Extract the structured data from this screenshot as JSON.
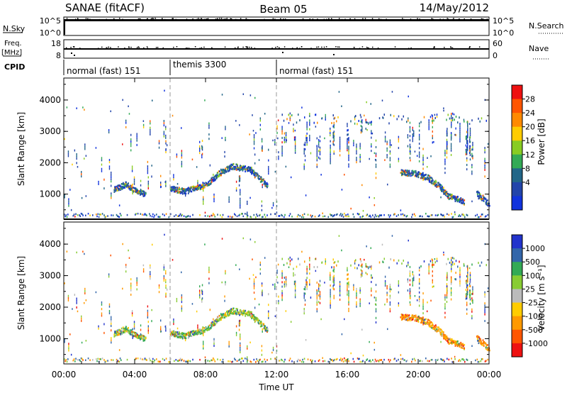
{
  "header": {
    "station": "SANAE (fitACF)",
    "beam": "Beam 05",
    "date": "14/May/2012"
  },
  "panels": {
    "nsky": {
      "label": "N.Sky",
      "ticks": [
        "10^5",
        "10^0"
      ]
    },
    "nsearch": {
      "label": "N.Search",
      "ticks": [
        "10^5",
        "10^0"
      ]
    },
    "freq": {
      "label_top": "Freq.",
      "label_bottom": "[MHz]",
      "ticks": [
        "18",
        "8"
      ]
    },
    "nave": {
      "label": "Nave",
      "ticks": [
        "60",
        "0"
      ]
    },
    "cpid": {
      "label": "CPID",
      "segments": [
        {
          "text": "normal (fast) 151",
          "start_hour": 0
        },
        {
          "text": "themis 3300",
          "start_hour": 6
        },
        {
          "text": "normal (fast) 151",
          "start_hour": 12
        }
      ]
    }
  },
  "colorbar_power": {
    "label": "Power [dB]",
    "ticks": [
      "28",
      "24",
      "20",
      "16",
      "12",
      "8",
      "4"
    ],
    "colors": [
      "#ee1111",
      "#ff5500",
      "#ff8a00",
      "#ffcc00",
      "#88cc22",
      "#33aa55",
      "#226688",
      "#2244aa",
      "#1133dd"
    ]
  },
  "colorbar_velocity": {
    "label": "Velocity [m s⁻¹]",
    "ticks": [
      "1000",
      "500",
      "100",
      "25",
      "-25",
      "-100",
      "-500",
      "-1000"
    ],
    "colors": [
      "#2233cc",
      "#3366aa",
      "#33aa55",
      "#88cc33",
      "#bbbbbb",
      "#ffcc00",
      "#ff9900",
      "#ff5500",
      "#ee1111"
    ]
  },
  "chart_data": [
    {
      "type": "heatmap",
      "name": "power",
      "ylabel": "Slant Range [km]",
      "ylim": [
        200,
        4700
      ],
      "xlim": [
        0,
        24
      ],
      "yticks": [
        "1000",
        "2000",
        "3000",
        "4000"
      ],
      "xticks": [
        "00:00",
        "04:00",
        "08:00",
        "12:00",
        "16:00",
        "20:00",
        "00:00"
      ],
      "mode_change_hours": [
        6,
        12
      ],
      "trace_segments": [
        {
          "hours": [
            2.8,
            3.5,
            4.1,
            4.6
          ],
          "ranges": [
            1100,
            1280,
            1050,
            950
          ]
        },
        {
          "hours": [
            6.0,
            6.8,
            7.6,
            8.2,
            8.8,
            9.5,
            10.5,
            11.5
          ],
          "ranges": [
            1150,
            1050,
            1180,
            1350,
            1650,
            1850,
            1750,
            1200
          ]
        },
        {
          "hours": [
            19.0,
            19.8,
            20.5,
            21.2,
            21.7,
            22.2,
            22.6
          ],
          "ranges": [
            1650,
            1620,
            1500,
            1200,
            900,
            800,
            700
          ]
        },
        {
          "hours": [
            23.3,
            23.7,
            24.0
          ],
          "ranges": [
            1000,
            800,
            600
          ]
        }
      ]
    },
    {
      "type": "heatmap",
      "name": "velocity",
      "ylabel": "Slant Range [km]",
      "xlabel": "Time UT",
      "ylim": [
        200,
        4700
      ],
      "xlim": [
        0,
        24
      ],
      "yticks": [
        "1000",
        "2000",
        "3000",
        "4000"
      ],
      "xticks": [
        "00:00",
        "04:00",
        "08:00",
        "12:00",
        "16:00",
        "20:00",
        "00:00"
      ],
      "mode_change_hours": [
        6,
        12
      ]
    }
  ]
}
